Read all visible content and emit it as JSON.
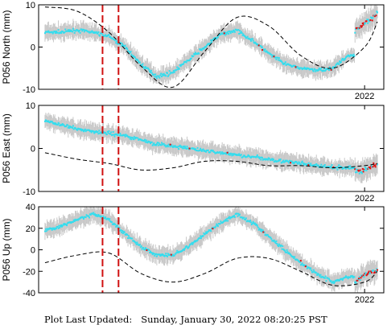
{
  "footer": {
    "label": "Plot Last Updated:",
    "value": "Sunday, January 30, 2022 08:20:25 PST"
  },
  "colors": {
    "data": "#33ddee",
    "recent": "#e01010",
    "error_bar": "#c8c8c8",
    "model": "#000000",
    "event": "#d01010"
  },
  "chart_data": [
    {
      "type": "scatter",
      "ylabel": "P056 North (mm)",
      "ylim": [
        -10,
        10
      ],
      "yticks": [
        -10,
        0,
        10
      ],
      "xlim": [
        2016.9,
        2022.3
      ],
      "xtick_value": 2022,
      "xtick_label": "2022",
      "event_lines": [
        2017.9,
        2018.15
      ],
      "series": [
        {
          "role": "data",
          "x": [
            2017.0,
            2017.25,
            2017.5,
            2017.75,
            2018.0,
            2018.25,
            2018.5,
            2018.75,
            2019.0,
            2019.25,
            2019.5,
            2019.75,
            2020.0,
            2020.25,
            2020.5,
            2020.75,
            2021.0,
            2021.25,
            2021.5,
            2021.75
          ],
          "y": [
            3.5,
            3.5,
            4,
            3.5,
            2.5,
            0,
            -4,
            -7,
            -6,
            -3,
            0,
            3,
            4,
            1.5,
            -1.5,
            -4,
            -5,
            -5.5,
            -5,
            -2
          ]
        },
        {
          "role": "recent",
          "x": [
            2021.85,
            2021.95,
            2022.05,
            2022.15,
            2022.2
          ],
          "y": [
            4,
            5,
            6,
            7,
            8
          ]
        },
        {
          "role": "model",
          "x": [
            2017.0,
            2017.5,
            2018.0,
            2018.5,
            2019.0,
            2019.5,
            2020.0,
            2020.5,
            2021.0,
            2021.5,
            2022.0,
            2022.2
          ],
          "y": [
            9.5,
            8.5,
            3.5,
            -4.5,
            -9.5,
            -1,
            7,
            5,
            -2,
            -5,
            0,
            6
          ]
        }
      ]
    },
    {
      "type": "scatter",
      "ylabel": "P056 East (mm)",
      "ylim": [
        -10,
        10
      ],
      "yticks": [
        -10,
        0,
        10
      ],
      "xlim": [
        2016.9,
        2022.3
      ],
      "xtick_value": 2022,
      "xtick_label": "2022",
      "event_lines": [
        2017.9,
        2018.15
      ],
      "series": [
        {
          "role": "data",
          "x": [
            2017.0,
            2017.25,
            2017.5,
            2017.75,
            2018.0,
            2018.25,
            2018.5,
            2018.75,
            2019.0,
            2019.25,
            2019.5,
            2019.75,
            2020.0,
            2020.25,
            2020.5,
            2020.75,
            2021.0,
            2021.25,
            2021.5,
            2021.75
          ],
          "y": [
            6.5,
            5.5,
            4.5,
            4,
            3.5,
            3,
            2,
            1,
            0.5,
            0,
            -0.5,
            -1,
            -1.5,
            -2,
            -2.5,
            -3,
            -3.5,
            -4,
            -4.5,
            -4.5
          ]
        },
        {
          "role": "recent",
          "x": [
            2021.85,
            2021.95,
            2022.05,
            2022.15,
            2022.2
          ],
          "y": [
            -5,
            -5.5,
            -4.5,
            -4,
            -3.5
          ]
        },
        {
          "role": "model",
          "x": [
            2017.0,
            2017.5,
            2018.0,
            2018.5,
            2019.0,
            2019.5,
            2020.0,
            2020.5,
            2021.0,
            2021.5,
            2022.0,
            2022.2
          ],
          "y": [
            -1,
            -2.5,
            -3.5,
            -5,
            -4.5,
            -3,
            -3,
            -4,
            -4,
            -4.5,
            -4,
            -3.5
          ]
        }
      ]
    },
    {
      "type": "scatter",
      "ylabel": "P056 Up (mm)",
      "ylim": [
        -40,
        40
      ],
      "yticks": [
        -40,
        -20,
        0,
        20,
        40
      ],
      "xlim": [
        2016.9,
        2022.3
      ],
      "xtick_value": 2022,
      "xtick_label": "2022",
      "event_lines": [
        2017.9,
        2018.15
      ],
      "series": [
        {
          "role": "data",
          "x": [
            2017.0,
            2017.25,
            2017.5,
            2017.75,
            2018.0,
            2018.25,
            2018.5,
            2018.75,
            2019.0,
            2019.25,
            2019.5,
            2019.75,
            2020.0,
            2020.25,
            2020.5,
            2020.75,
            2021.0,
            2021.25,
            2021.5,
            2021.75
          ],
          "y": [
            18,
            22,
            28,
            33,
            28,
            15,
            3,
            -5,
            -5,
            3,
            15,
            25,
            33,
            25,
            12,
            0,
            -12,
            -22,
            -30,
            -25
          ]
        },
        {
          "role": "recent",
          "x": [
            2021.85,
            2021.95,
            2022.05,
            2022.15,
            2022.2
          ],
          "y": [
            -30,
            -25,
            -22,
            -20,
            -18
          ]
        },
        {
          "role": "model",
          "x": [
            2017.0,
            2017.5,
            2018.0,
            2018.5,
            2019.0,
            2019.5,
            2020.0,
            2020.5,
            2021.0,
            2021.5,
            2022.0,
            2022.2
          ],
          "y": [
            -12,
            -5,
            -3,
            -22,
            -30,
            -22,
            -8,
            -8,
            -20,
            -33,
            -30,
            -20
          ]
        }
      ]
    }
  ]
}
